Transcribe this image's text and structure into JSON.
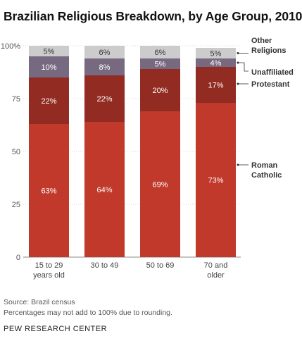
{
  "title": "Brazilian Religious Breakdown, by Age Group, 2010",
  "source": "Source: Brazil census",
  "note": "Percentages may not add to 100% due to rounding.",
  "brand": "PEW RESEARCH CENTER",
  "colors": {
    "Roman Catholic": "#c0392b",
    "Protestant": "#922b21",
    "Unaffiliated": "#776a80",
    "Other Religions": "#cccccc"
  },
  "chart_data": {
    "type": "bar",
    "stacked": true,
    "categories": [
      [
        "15 to 29",
        "years old"
      ],
      [
        "30 to 49"
      ],
      [
        "50 to 69"
      ],
      [
        "70 and",
        "older"
      ]
    ],
    "series": [
      {
        "name": "Roman Catholic",
        "legend": [
          "Roman",
          "Catholic"
        ],
        "values": [
          63,
          64,
          69,
          73
        ]
      },
      {
        "name": "Protestant",
        "legend": [
          "Protestant"
        ],
        "values": [
          22,
          22,
          20,
          17
        ]
      },
      {
        "name": "Unaffiliated",
        "legend": [
          "Unaffiliated"
        ],
        "values": [
          10,
          8,
          5,
          4
        ]
      },
      {
        "name": "Other Religions",
        "legend": [
          "Other",
          "Religions"
        ],
        "values": [
          5,
          6,
          6,
          5
        ]
      }
    ],
    "labels": [
      [
        "63%",
        "22%",
        "10%",
        "5%"
      ],
      [
        "64%",
        "22%",
        "8%",
        "6%"
      ],
      [
        "69%",
        "20%",
        "5%",
        "6%"
      ],
      [
        "73%",
        "17%",
        "4%",
        "5%"
      ]
    ],
    "yticks": [
      "0",
      "25",
      "50",
      "75",
      "100%"
    ],
    "ytick_values": [
      0,
      25,
      50,
      75,
      100
    ],
    "ylim": [
      0,
      100
    ],
    "legend_position": "right"
  }
}
